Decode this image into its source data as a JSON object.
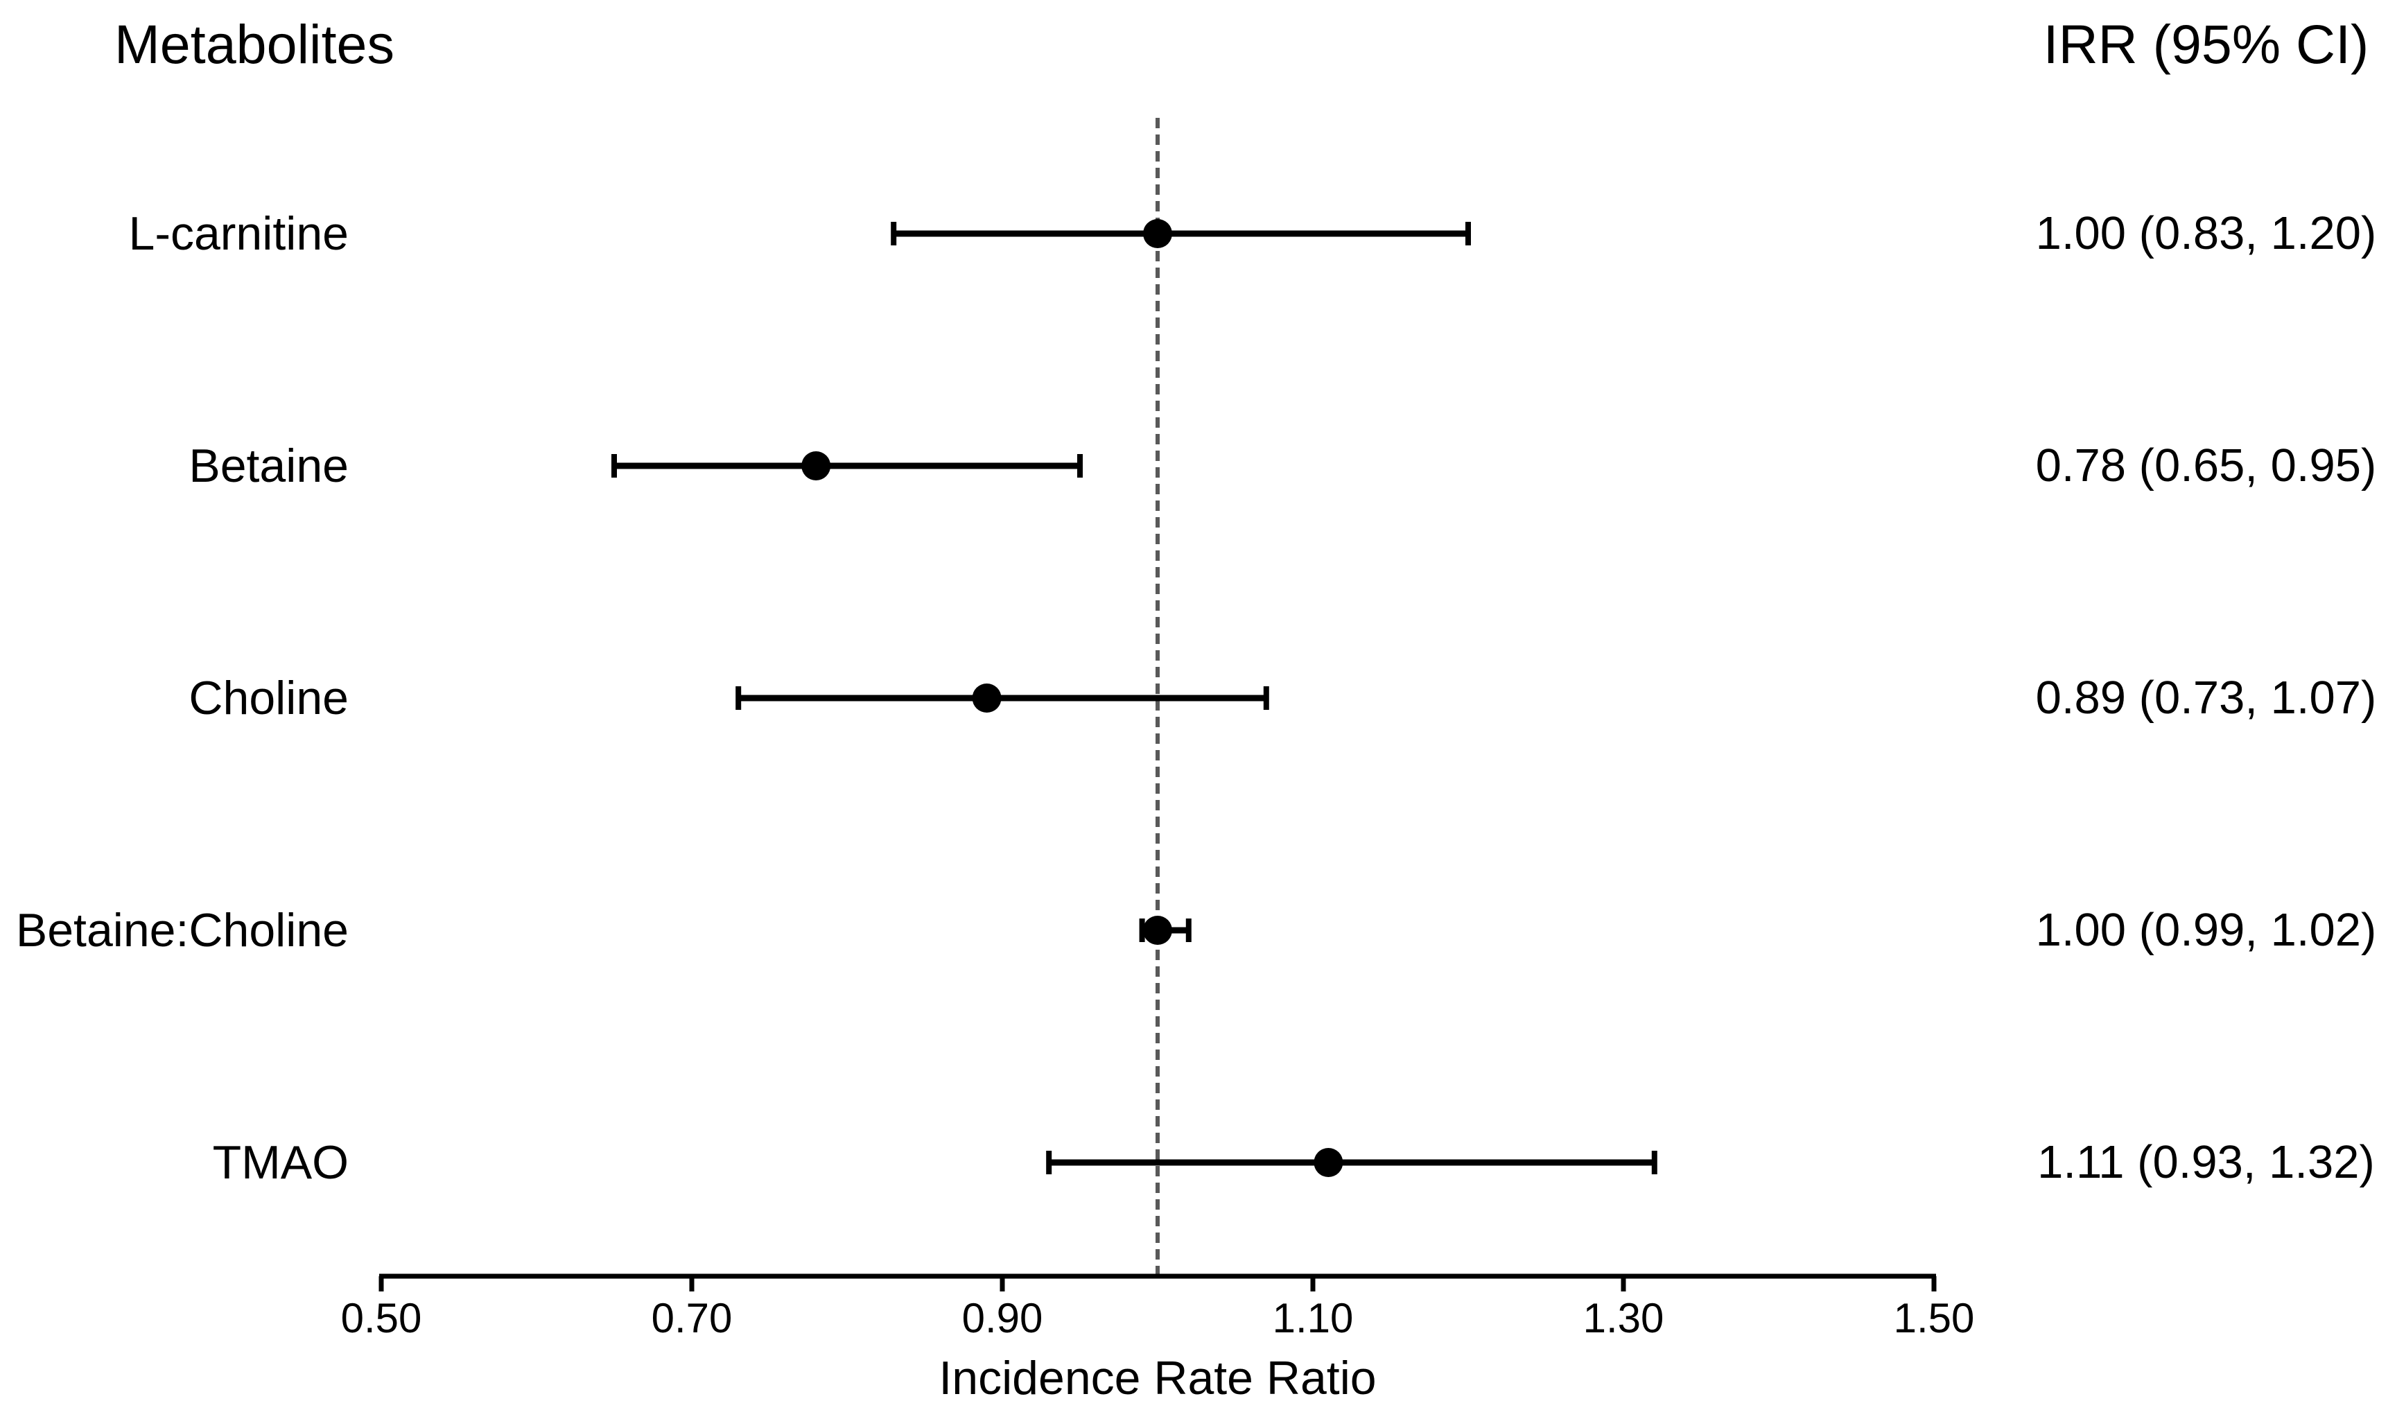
{
  "header": {
    "metabolites": "Metabolites",
    "irr_ci": "IRR (95% CI)"
  },
  "chart_data": {
    "type": "forest",
    "title": "",
    "xlabel": "Incidence Rate Ratio",
    "xlim": [
      0.5,
      1.5
    ],
    "reference_line": 1.0,
    "grid": false,
    "x_ticks": [
      {
        "value": 0.5,
        "label": "0.50"
      },
      {
        "value": 0.7,
        "label": "0.70"
      },
      {
        "value": 0.9,
        "label": "0.90"
      },
      {
        "value": 1.1,
        "label": "1.10"
      },
      {
        "value": 1.3,
        "label": "1.30"
      },
      {
        "value": 1.5,
        "label": "1.50"
      }
    ],
    "rows": [
      {
        "label": "L-carnitine",
        "irr": 1.0,
        "ci_low": 0.83,
        "ci_high": 1.2,
        "irr_display": "1.00 (0.83, 1.20)"
      },
      {
        "label": "Betaine",
        "irr": 0.78,
        "ci_low": 0.65,
        "ci_high": 0.95,
        "irr_display": "0.78 (0.65, 0.95)"
      },
      {
        "label": "Choline",
        "irr": 0.89,
        "ci_low": 0.73,
        "ci_high": 1.07,
        "irr_display": "0.89 (0.73, 1.07)"
      },
      {
        "label": "Betaine:Choline",
        "irr": 1.0,
        "ci_low": 0.99,
        "ci_high": 1.02,
        "irr_display": "1.00 (0.99, 1.02)"
      },
      {
        "label": "TMAO",
        "irr": 1.11,
        "ci_low": 0.93,
        "ci_high": 1.32,
        "irr_display": "1.11 (0.93, 1.32)"
      }
    ]
  },
  "colors": {
    "background": "#ffffff",
    "text": "#000000",
    "marker": "#000000",
    "error_bar": "#000000",
    "axis": "#000000",
    "reference_line": "#595959"
  }
}
